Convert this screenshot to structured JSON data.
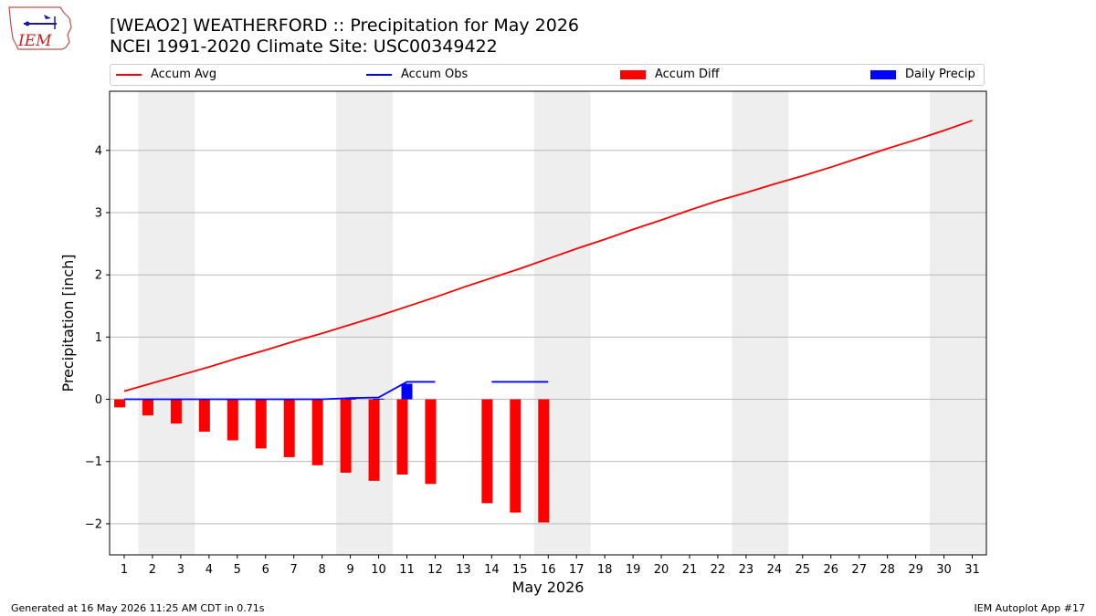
{
  "header": {
    "title_line1": "[WEAO2] WEATHERFORD :: Precipitation for May 2026",
    "title_line2": "NCEI 1991-2020 Climate Site: USC00349422"
  },
  "logo": {
    "text": "IEM",
    "icon": "iowa-state-map-logo"
  },
  "footer": {
    "left": "Generated at 16 May 2026 11:25 AM CDT in 0.71s",
    "right": "IEM Autoplot App #17"
  },
  "colors": {
    "accum_avg": "#ff0000",
    "accum_obs": "#0000ff",
    "accum_diff": "#ff0000",
    "daily_precip": "#0000ff",
    "weekend_shade": "#eeeeee",
    "grid": "#b0b0b0"
  },
  "chart_data": {
    "type": "bar",
    "xlabel": "May 2026",
    "ylabel": "Precipitation [inch]",
    "xlim": [
      1,
      31
    ],
    "ylim": [
      -2.5,
      4.95
    ],
    "yticks": [
      -2,
      -1,
      0,
      1,
      2,
      3,
      4
    ],
    "grid": "horizontal",
    "legend": "top",
    "categories": [
      "1",
      "2",
      "3",
      "4",
      "5",
      "6",
      "7",
      "8",
      "9",
      "10",
      "11",
      "12",
      "13",
      "14",
      "15",
      "16",
      "17",
      "18",
      "19",
      "20",
      "21",
      "22",
      "23",
      "24",
      "25",
      "26",
      "27",
      "28",
      "29",
      "30",
      "31"
    ],
    "weekend_days": [
      [
        2,
        3
      ],
      [
        9,
        10
      ],
      [
        16,
        17
      ],
      [
        23,
        24
      ],
      [
        30,
        31
      ]
    ],
    "series": [
      {
        "name": "Accum Avg",
        "kind": "line",
        "x": [
          1,
          2,
          3,
          4,
          5,
          6,
          7,
          8,
          9,
          10,
          11,
          12,
          13,
          14,
          15,
          16,
          17,
          18,
          19,
          20,
          21,
          22,
          23,
          24,
          25,
          26,
          27,
          28,
          29,
          30,
          31
        ],
        "values": [
          0.13,
          0.26,
          0.39,
          0.52,
          0.66,
          0.79,
          0.93,
          1.06,
          1.2,
          1.34,
          1.49,
          1.64,
          1.8,
          1.95,
          2.1,
          2.26,
          2.42,
          2.57,
          2.73,
          2.88,
          3.04,
          3.19,
          3.32,
          3.46,
          3.59,
          3.73,
          3.88,
          4.03,
          4.17,
          4.32,
          4.48
        ]
      },
      {
        "name": "Accum Obs",
        "kind": "line",
        "x": [
          1,
          2,
          3,
          4,
          5,
          6,
          7,
          8,
          9,
          10,
          11,
          12
        ],
        "values": [
          0,
          0,
          0,
          0,
          0,
          0,
          0,
          0,
          0.02,
          0.03,
          0.28,
          0.28
        ],
        "extra_segments": [
          {
            "x": [
              14,
              16
            ],
            "values": [
              0.28,
              0.28
            ]
          }
        ]
      },
      {
        "name": "Accum Diff",
        "kind": "bar",
        "x": [
          1,
          2,
          3,
          4,
          5,
          6,
          7,
          8,
          9,
          10,
          11,
          12,
          14,
          15,
          16
        ],
        "values": [
          -0.13,
          -0.26,
          -0.39,
          -0.52,
          -0.66,
          -0.79,
          -0.93,
          -1.06,
          -1.18,
          -1.31,
          -1.21,
          -1.36,
          -1.67,
          -1.82,
          -1.98
        ]
      },
      {
        "name": "Daily Precip",
        "kind": "bar",
        "x": [
          9,
          10,
          11
        ],
        "values": [
          0.01,
          0.01,
          0.25
        ]
      }
    ]
  }
}
